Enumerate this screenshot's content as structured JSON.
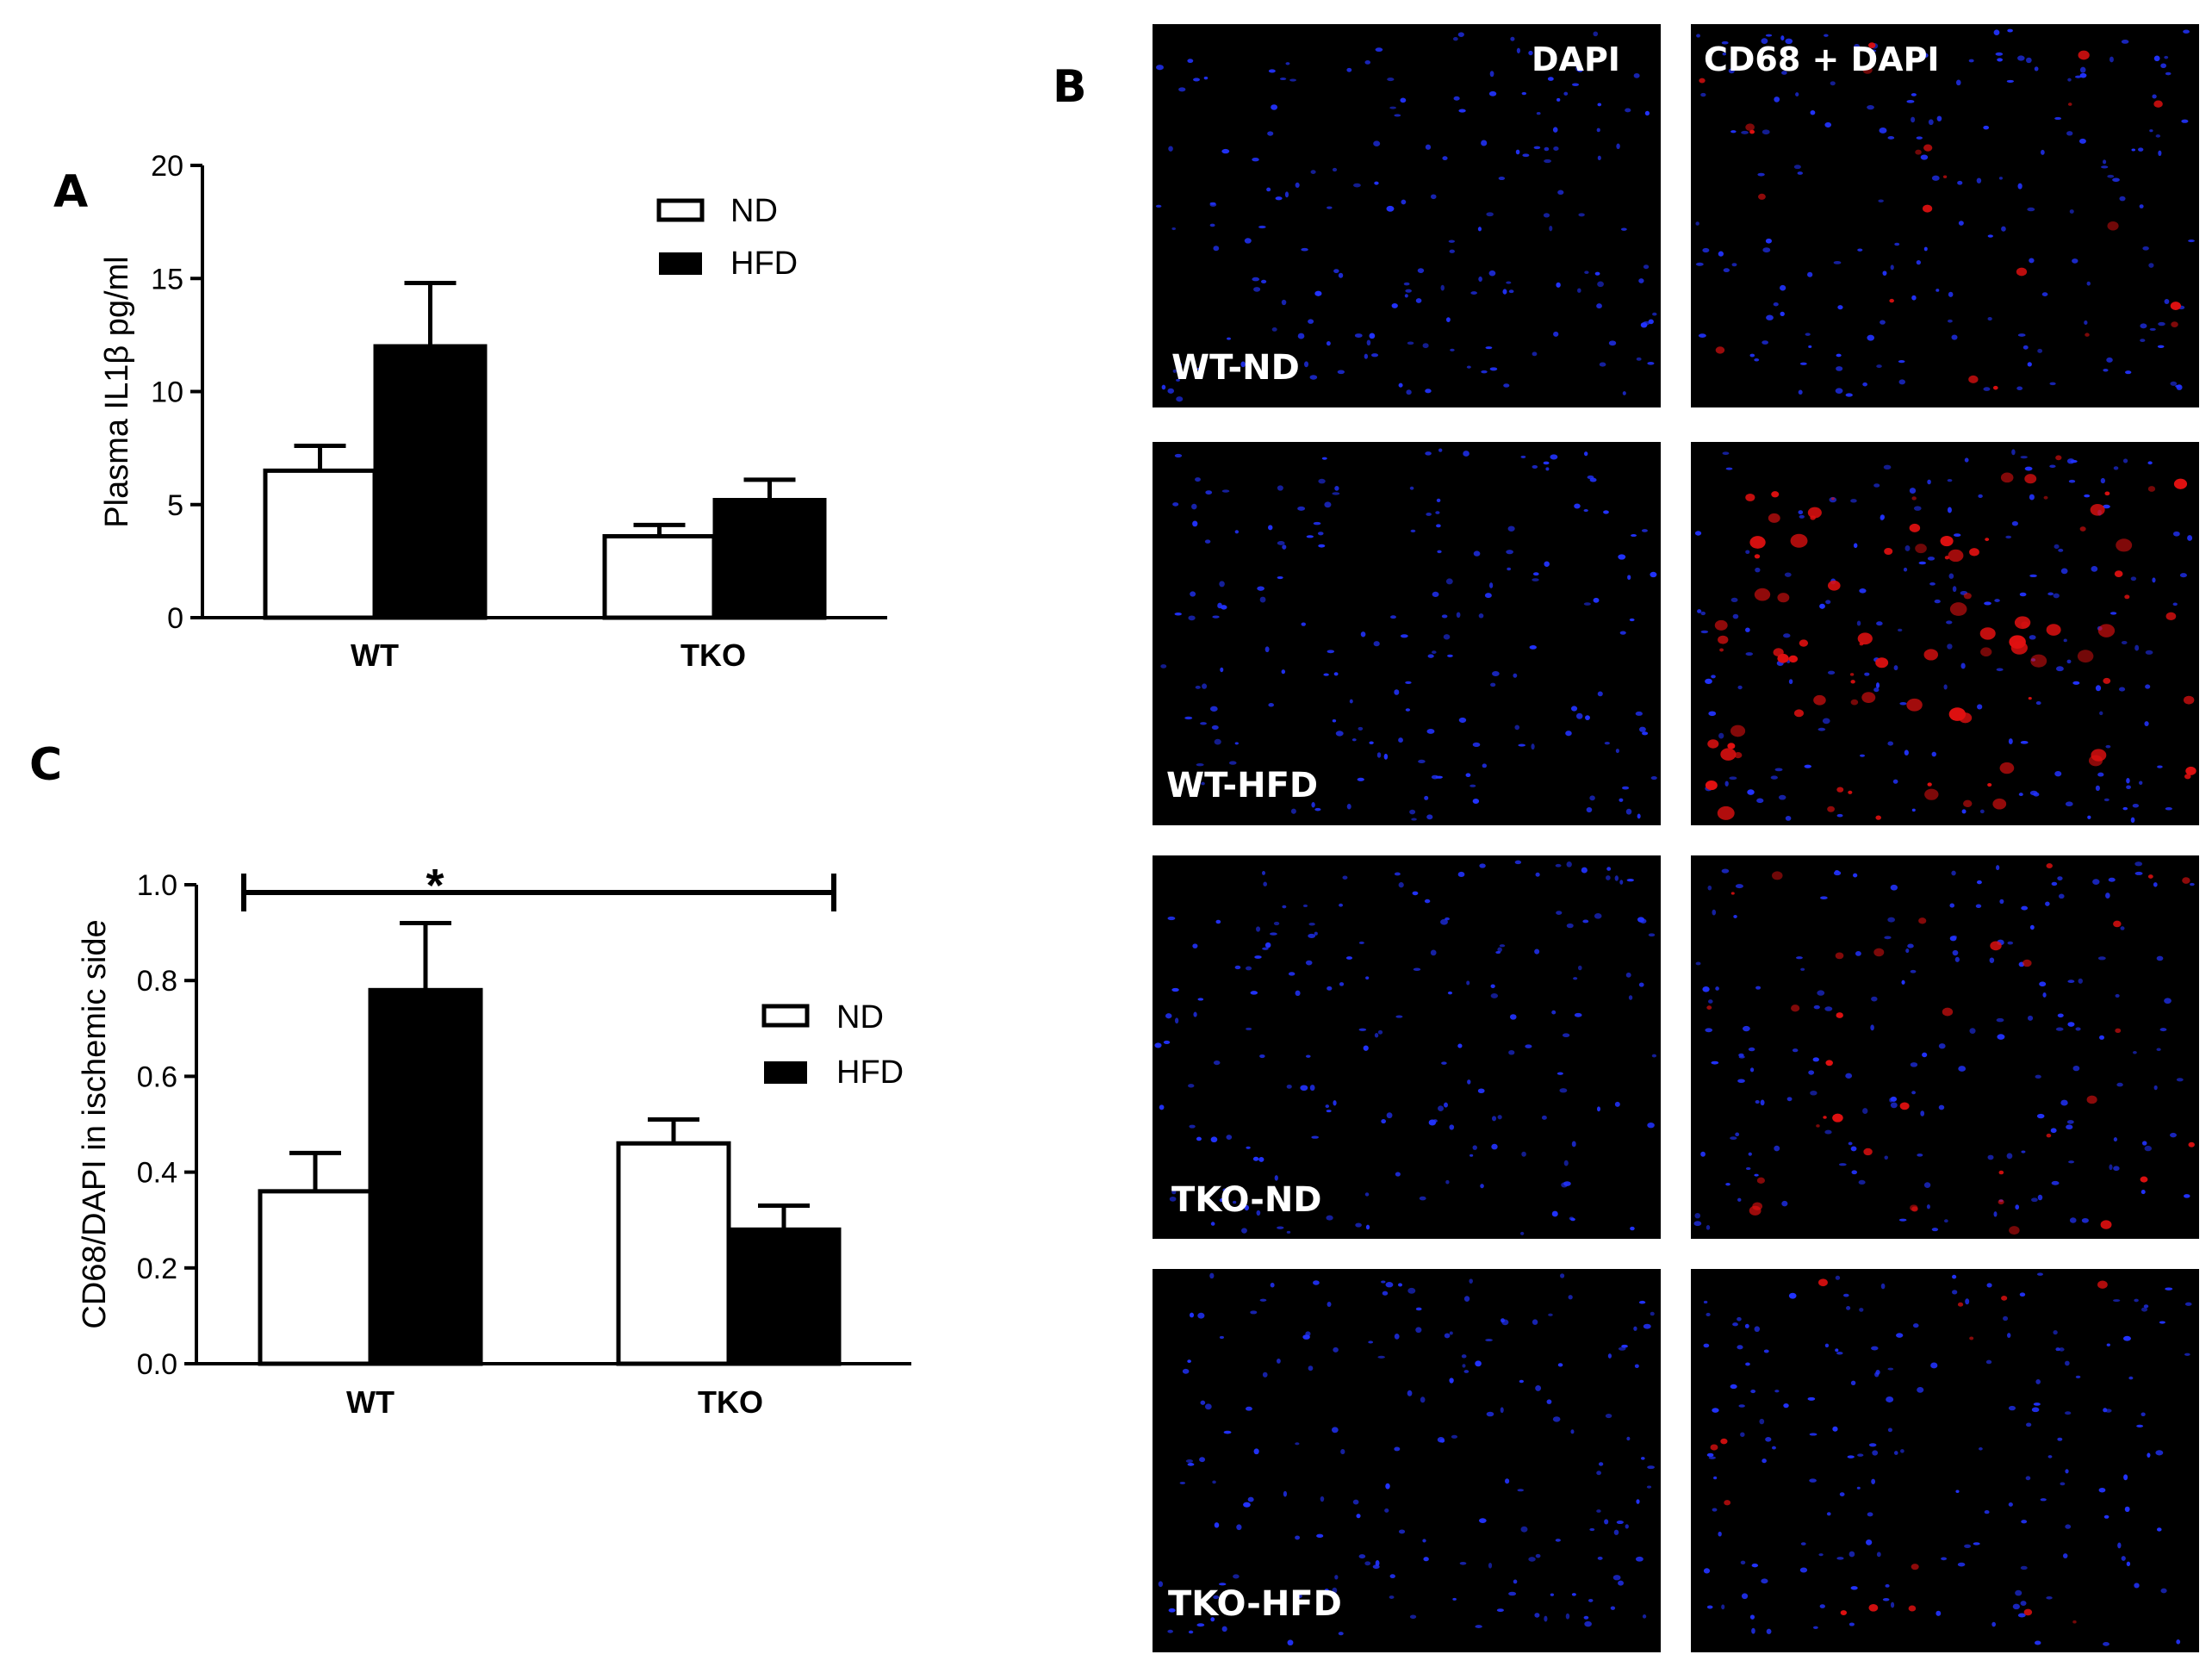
{
  "colors": {
    "nd_fill": "#ffffff",
    "hfd_fill": "#000000",
    "micro_bg": "#000000",
    "dapi": "#2233ff",
    "cd68": "#e01010"
  },
  "panels": {
    "a": "A",
    "b": "B",
    "c": "C"
  },
  "micrographs": {
    "column_headers": [
      "DAPI",
      "CD68 + DAPI"
    ],
    "row_labels": [
      "WT-ND",
      "WT-HFD",
      "TKO-ND",
      "TKO-HFD"
    ]
  },
  "chart_data": [
    {
      "panel": "A",
      "type": "bar",
      "categories": [
        "WT",
        "TKO"
      ],
      "series": [
        {
          "name": "ND",
          "values": [
            6.5,
            3.6
          ],
          "errors": [
            1.1,
            0.5
          ]
        },
        {
          "name": "HFD",
          "values": [
            12.0,
            5.2
          ],
          "errors": [
            2.8,
            0.9
          ]
        }
      ],
      "ylabel": "Plasma IL1β pg/ml",
      "ylim": [
        0,
        20
      ],
      "yticks": [
        "0",
        "5",
        "10",
        "15",
        "20"
      ],
      "legend": "top-right"
    },
    {
      "panel": "C",
      "type": "bar",
      "categories": [
        "WT",
        "TKO"
      ],
      "series": [
        {
          "name": "ND",
          "values": [
            0.36,
            0.46
          ],
          "errors": [
            0.08,
            0.05
          ]
        },
        {
          "name": "HFD",
          "values": [
            0.78,
            0.28
          ],
          "errors": [
            0.14,
            0.05
          ]
        }
      ],
      "ylabel": "CD68/DAPI in ischemic side",
      "ylim": [
        0,
        1.0
      ],
      "yticks": [
        "0.0",
        "0.2",
        "0.4",
        "0.6",
        "0.8",
        "1.0"
      ],
      "legend": "right",
      "annotation": "*"
    }
  ]
}
